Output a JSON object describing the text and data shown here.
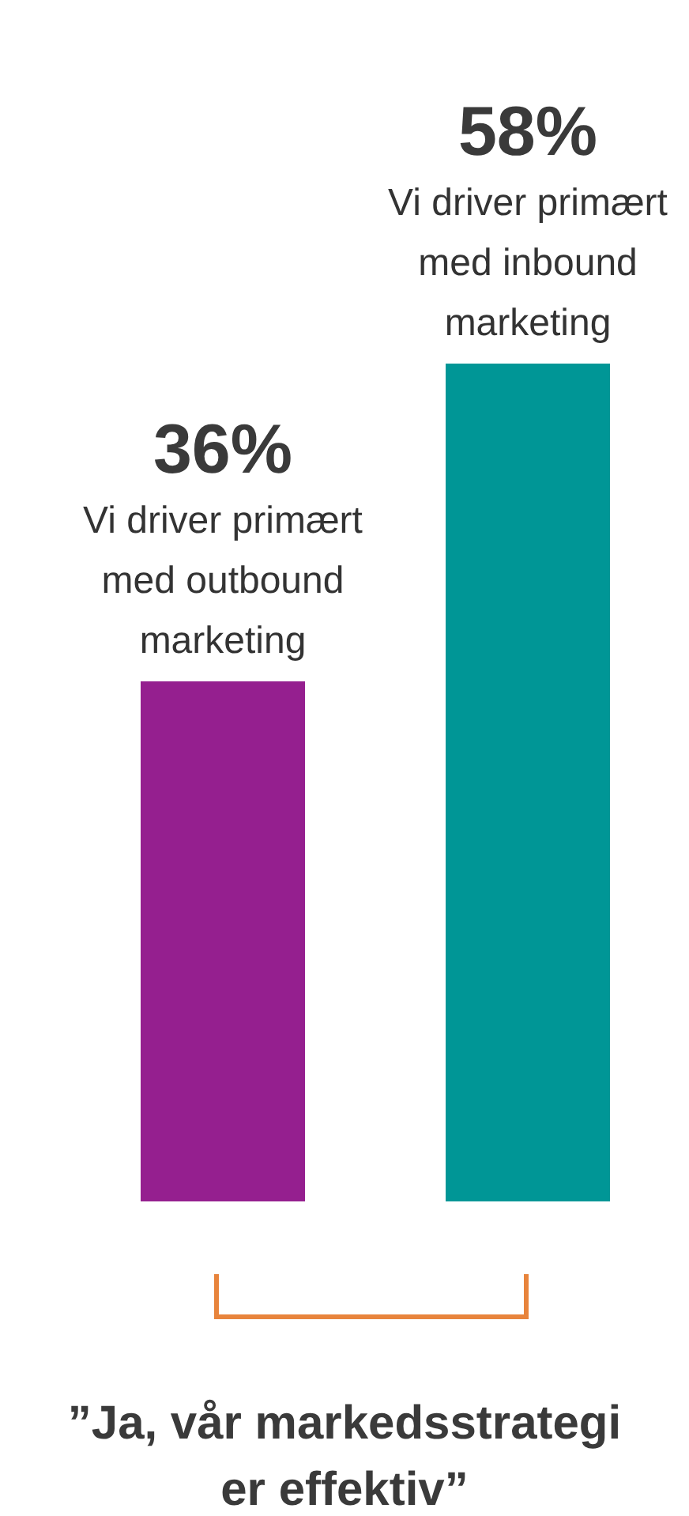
{
  "chart_data": {
    "type": "bar",
    "categories": [
      "Vi driver primært med outbound marketing",
      "Vi driver primært med inbound marketing"
    ],
    "values": [
      36,
      58
    ],
    "colors": [
      "#951f8f",
      "#009696"
    ],
    "value_labels": [
      "36%",
      "58%"
    ],
    "annotations": [
      "”Ja, vår markedsstrategi er effektiv”"
    ]
  }
}
